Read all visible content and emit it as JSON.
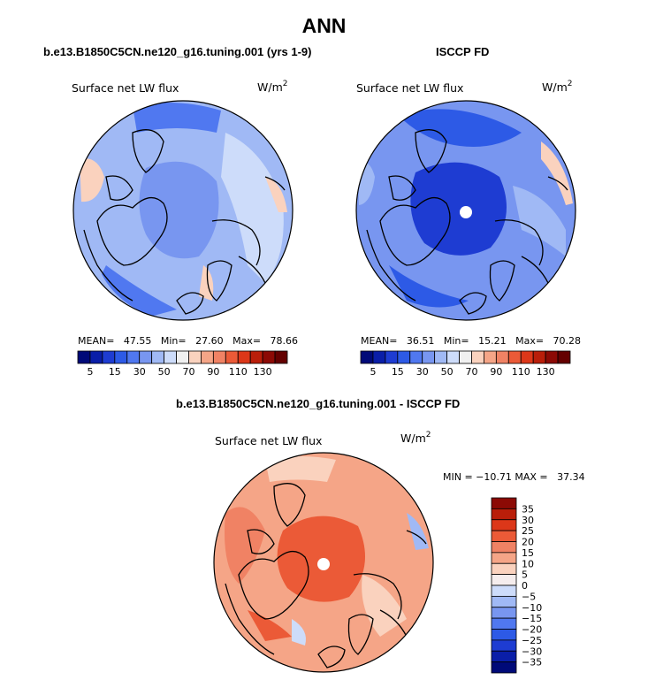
{
  "figure": {
    "title": "ANN",
    "panel_a_title": "b.e13.B1850C5CN.ne120_g16.tuning.001 (yrs 1-9)",
    "panel_b_title": "ISCCP FD",
    "panel_c_title": "b.e13.B1850C5CN.ne120_g16.tuning.001 - ISCCP FD",
    "variable": "Surface net LW flux",
    "units": "W/m",
    "units_exp": "2"
  },
  "panel_a": {
    "stats": "MEAN=   47.55   Min=   27.60   Max=   78.66"
  },
  "panel_b": {
    "stats": "MEAN=   36.51   Min=   15.21   Max=   70.28"
  },
  "panel_c": {
    "stats": "MIN = −10.71 MAX =   37.34"
  },
  "colors": {
    "abs_scale": [
      "#000a78",
      "#0a1ea8",
      "#1e3cd2",
      "#2d5ae6",
      "#5078f0",
      "#7896f0",
      "#a0b9f5",
      "#cddcfa",
      "#f0f0f0",
      "#fad2be",
      "#f5a587",
      "#f08264",
      "#eb5a37",
      "#dc3719",
      "#b91e0a",
      "#8c0a05",
      "#640000"
    ],
    "diff_scale": [
      "#000a78",
      "#0a1ea8",
      "#1e3cd2",
      "#2d5ae6",
      "#5078f0",
      "#7896f0",
      "#a0b9f5",
      "#cddcfa",
      "#f5eded",
      "#fad2be",
      "#f5a587",
      "#f08264",
      "#eb5a37",
      "#dc3719",
      "#b91e0a",
      "#8c0a05"
    ]
  },
  "chart_data": [
    {
      "type": "heatmap",
      "title": "b.e13.B1850C5CN.ne120_g16.tuning.001 (yrs 1-9)",
      "projection": "north-polar stereographic",
      "variable": "Surface net LW flux",
      "units": "W/m2",
      "contour_levels": [
        5,
        10,
        15,
        20,
        25,
        30,
        40,
        50,
        60,
        70,
        80,
        90,
        100,
        110,
        120,
        130
      ],
      "colorbar_tick_labels": [
        "5",
        "15",
        "30",
        "50",
        "70",
        "90",
        "110",
        "130"
      ],
      "mean": 47.55,
      "min": 27.6,
      "max": 78.66
    },
    {
      "type": "heatmap",
      "title": "ISCCP FD",
      "projection": "north-polar stereographic",
      "variable": "Surface net LW flux",
      "units": "W/m2",
      "contour_levels": [
        5,
        10,
        15,
        20,
        25,
        30,
        40,
        50,
        60,
        70,
        80,
        90,
        100,
        110,
        120,
        130
      ],
      "colorbar_tick_labels": [
        "5",
        "15",
        "30",
        "50",
        "70",
        "90",
        "110",
        "130"
      ],
      "mean": 36.51,
      "min": 15.21,
      "max": 70.28
    },
    {
      "type": "heatmap",
      "title": "b.e13.B1850C5CN.ne120_g16.tuning.001 - ISCCP FD",
      "projection": "north-polar stereographic",
      "variable": "Surface net LW flux",
      "units": "W/m2",
      "contour_levels": [
        -35,
        -30,
        -25,
        -20,
        -15,
        -10,
        -5,
        0,
        5,
        10,
        15,
        20,
        25,
        30,
        35
      ],
      "colorbar_tick_labels": [
        "35",
        "30",
        "25",
        "20",
        "15",
        "10",
        "5",
        "0",
        "−5",
        "−10",
        "−15",
        "−20",
        "−25",
        "−30",
        "−35"
      ],
      "min": -10.71,
      "max": 37.34
    }
  ]
}
